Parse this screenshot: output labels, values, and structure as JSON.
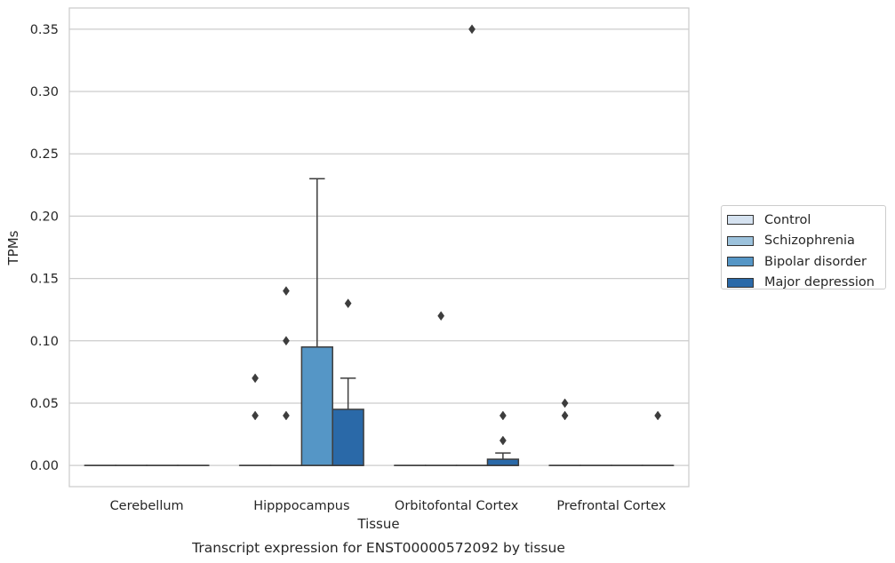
{
  "chart_data": {
    "type": "box",
    "title": "Transcript expression for ENST00000572092 by tissue",
    "xlabel": "Tissue",
    "ylabel": "TPMs",
    "ylim": [
      -0.017,
      0.367
    ],
    "yticks": [
      "0.00",
      "0.05",
      "0.10",
      "0.15",
      "0.20",
      "0.25",
      "0.30",
      "0.35"
    ],
    "ytick_values": [
      0,
      0.05,
      0.1,
      0.15,
      0.2,
      0.25,
      0.3,
      0.35
    ],
    "grid": true,
    "legend_position": "right",
    "categories": [
      "Cerebellum",
      "Hipppocampus",
      "Orbitofontal Cortex",
      "Prefrontal Cortex"
    ],
    "series": [
      {
        "name": "Control",
        "color": "#d5e2f0",
        "boxes": [
          {
            "q1": 0,
            "median": 0,
            "q3": 0,
            "whisker_low": 0,
            "whisker_high": 0,
            "outliers": []
          },
          {
            "q1": 0,
            "median": 0,
            "q3": 0,
            "whisker_low": 0,
            "whisker_high": 0,
            "outliers": [
              0.04,
              0.07
            ]
          },
          {
            "q1": 0,
            "median": 0,
            "q3": 0,
            "whisker_low": 0,
            "whisker_high": 0,
            "outliers": []
          },
          {
            "q1": 0,
            "median": 0,
            "q3": 0,
            "whisker_low": 0,
            "whisker_high": 0,
            "outliers": [
              0.04,
              0.05
            ]
          }
        ]
      },
      {
        "name": "Schizophrenia",
        "color": "#9cc2dc",
        "boxes": [
          {
            "q1": 0,
            "median": 0,
            "q3": 0,
            "whisker_low": 0,
            "whisker_high": 0,
            "outliers": []
          },
          {
            "q1": 0,
            "median": 0,
            "q3": 0,
            "whisker_low": 0,
            "whisker_high": 0,
            "outliers": [
              0.04,
              0.1,
              0.14
            ]
          },
          {
            "q1": 0,
            "median": 0,
            "q3": 0,
            "whisker_low": 0,
            "whisker_high": 0,
            "outliers": [
              0.12
            ]
          },
          {
            "q1": 0,
            "median": 0,
            "q3": 0,
            "whisker_low": 0,
            "whisker_high": 0,
            "outliers": []
          }
        ]
      },
      {
        "name": "Bipolar disorder",
        "color": "#5596c6",
        "boxes": [
          {
            "q1": 0,
            "median": 0,
            "q3": 0,
            "whisker_low": 0,
            "whisker_high": 0,
            "outliers": []
          },
          {
            "q1": 0,
            "median": 0,
            "q3": 0.095,
            "whisker_low": 0,
            "whisker_high": 0.23,
            "outliers": []
          },
          {
            "q1": 0,
            "median": 0,
            "q3": 0,
            "whisker_low": 0,
            "whisker_high": 0,
            "outliers": [
              0.35
            ]
          },
          {
            "q1": 0,
            "median": 0,
            "q3": 0,
            "whisker_low": 0,
            "whisker_high": 0,
            "outliers": []
          }
        ]
      },
      {
        "name": "Major depression",
        "color": "#2a69a8",
        "boxes": [
          {
            "q1": 0,
            "median": 0,
            "q3": 0,
            "whisker_low": 0,
            "whisker_high": 0,
            "outliers": []
          },
          {
            "q1": 0,
            "median": 0,
            "q3": 0.045,
            "whisker_low": 0,
            "whisker_high": 0.07,
            "outliers": [
              0.13
            ]
          },
          {
            "q1": 0,
            "median": 0,
            "q3": 0.005,
            "whisker_low": 0,
            "whisker_high": 0.01,
            "outliers": [
              0.02,
              0.04
            ]
          },
          {
            "q1": 0,
            "median": 0,
            "q3": 0,
            "whisker_low": 0,
            "whisker_high": 0,
            "outliers": [
              0.04
            ]
          }
        ]
      }
    ]
  }
}
